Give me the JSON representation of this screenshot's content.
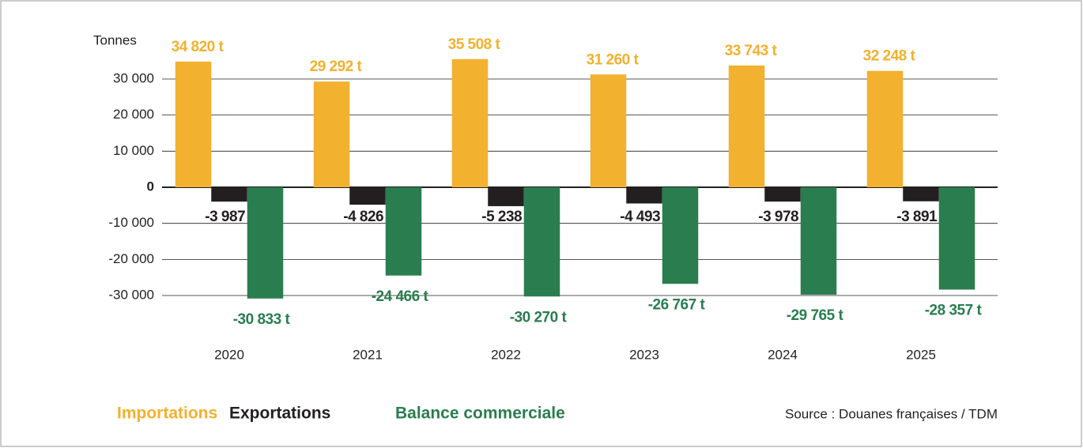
{
  "chart_data": {
    "type": "bar",
    "y_label": "Tonnes",
    "categories": [
      "2020",
      "2021",
      "2022",
      "2023",
      "2024",
      "2025"
    ],
    "series": [
      {
        "name": "Importations",
        "color": "#f2b12e",
        "values": [
          34820,
          29292,
          35508,
          31260,
          33743,
          32248
        ],
        "value_labels": [
          "34 820 t",
          "29 292 t",
          "35 508 t",
          "31 260 t",
          "33 743 t",
          "32 248 t"
        ]
      },
      {
        "name": "Exportations",
        "color": "#231f20",
        "values": [
          -3987,
          -4826,
          -5238,
          -4493,
          -3978,
          -3891
        ],
        "value_labels": [
          "-3 987 t",
          "-4 826 t",
          "-5 238 t",
          "-4 493 t",
          "-3 978 t",
          "-3 891 t"
        ]
      },
      {
        "name": "Balance commerciale",
        "color": "#2a7d4f",
        "values": [
          -30833,
          -24466,
          -30270,
          -26767,
          -29765,
          -28357
        ],
        "value_labels": [
          "-30 833 t",
          "-24 466 t",
          "-30 270 t",
          "-26 767 t",
          "-29 765 t",
          "-28 357 t"
        ]
      }
    ],
    "ylim": [
      -35000,
      40000
    ],
    "yticks": [
      {
        "value": 30000,
        "label": "30 000"
      },
      {
        "value": 20000,
        "label": "20 000"
      },
      {
        "value": 10000,
        "label": "10 000"
      },
      0,
      {
        "value": -10000,
        "label": "-10 000"
      },
      {
        "value": -20000,
        "label": "-20 000"
      },
      {
        "value": -30000,
        "label": "-30 000"
      }
    ],
    "grid": true,
    "source": "Source : Douanes françaises / TDM"
  }
}
